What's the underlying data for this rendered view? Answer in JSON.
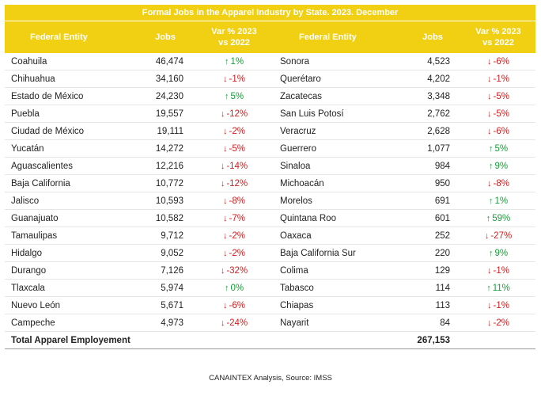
{
  "title": "Formal Jobs in the Apparel Industry by State. 2023. December",
  "headers": {
    "entity": "Federal Entity",
    "jobs": "Jobs",
    "var_line1": "Var % 2023",
    "var_line2": "vs 2022"
  },
  "colors": {
    "header_bg": "#f1cf12",
    "up": "#1a9e3a",
    "down": "#d11f1f"
  },
  "rows": [
    {
      "left": {
        "entity": "Coahuila",
        "jobs": "46,474",
        "dir": "up",
        "var": "1%"
      },
      "right": {
        "entity": "Sonora",
        "jobs": "4,523",
        "dir": "down",
        "var": "-6%"
      }
    },
    {
      "left": {
        "entity": "Chihuahua",
        "jobs": "34,160",
        "dir": "down",
        "var": "-1%"
      },
      "right": {
        "entity": "Querétaro",
        "jobs": "4,202",
        "dir": "down",
        "var": "-1%"
      }
    },
    {
      "left": {
        "entity": "Estado de México",
        "jobs": "24,230",
        "dir": "up",
        "var": "5%"
      },
      "right": {
        "entity": "Zacatecas",
        "jobs": "3,348",
        "dir": "down",
        "var": "-5%"
      }
    },
    {
      "left": {
        "entity": "Puebla",
        "jobs": "19,557",
        "dir": "down",
        "var": "-12%"
      },
      "right": {
        "entity": "San Luis Potosí",
        "jobs": "2,762",
        "dir": "down",
        "var": "-5%"
      }
    },
    {
      "left": {
        "entity": "Ciudad de México",
        "jobs": "19,111",
        "dir": "down",
        "var": "-2%"
      },
      "right": {
        "entity": "Veracruz",
        "jobs": "2,628",
        "dir": "down",
        "var": "-6%"
      }
    },
    {
      "left": {
        "entity": "Yucatán",
        "jobs": "14,272",
        "dir": "down",
        "var": "-5%"
      },
      "right": {
        "entity": "Guerrero",
        "jobs": "1,077",
        "dir": "up",
        "var": "5%"
      }
    },
    {
      "left": {
        "entity": "Aguascalientes",
        "jobs": "12,216",
        "dir": "down",
        "var": "-14%"
      },
      "right": {
        "entity": "Sinaloa",
        "jobs": "984",
        "dir": "up",
        "var": "9%"
      }
    },
    {
      "left": {
        "entity": "Baja California",
        "jobs": "10,772",
        "dir": "down",
        "var": "-12%"
      },
      "right": {
        "entity": "Michoacán",
        "jobs": "950",
        "dir": "down",
        "var": "-8%"
      }
    },
    {
      "left": {
        "entity": "Jalisco",
        "jobs": "10,593",
        "dir": "down",
        "var": "-8%"
      },
      "right": {
        "entity": "Morelos",
        "jobs": "691",
        "dir": "up",
        "var": "1%"
      }
    },
    {
      "left": {
        "entity": "Guanajuato",
        "jobs": "10,582",
        "dir": "down",
        "var": "-7%"
      },
      "right": {
        "entity": "Quintana Roo",
        "jobs": "601",
        "dir": "up",
        "var": "59%"
      }
    },
    {
      "left": {
        "entity": "Tamaulipas",
        "jobs": "9,712",
        "dir": "down",
        "var": "-2%"
      },
      "right": {
        "entity": "Oaxaca",
        "jobs": "252",
        "dir": "down",
        "var": "-27%"
      }
    },
    {
      "left": {
        "entity": "Hidalgo",
        "jobs": "9,052",
        "dir": "down",
        "var": "-2%"
      },
      "right": {
        "entity": "Baja California Sur",
        "jobs": "220",
        "dir": "up",
        "var": "9%"
      }
    },
    {
      "left": {
        "entity": "Durango",
        "jobs": "7,126",
        "dir": "down",
        "var": "-32%"
      },
      "right": {
        "entity": "Colima",
        "jobs": "129",
        "dir": "down",
        "var": "-1%"
      }
    },
    {
      "left": {
        "entity": "Tlaxcala",
        "jobs": "5,974",
        "dir": "up",
        "var": "0%"
      },
      "right": {
        "entity": "Tabasco",
        "jobs": "114",
        "dir": "up",
        "var": "11%"
      }
    },
    {
      "left": {
        "entity": "Nuevo León",
        "jobs": "5,671",
        "dir": "down",
        "var": "-6%"
      },
      "right": {
        "entity": "Chiapas",
        "jobs": "113",
        "dir": "down",
        "var": "-1%"
      }
    },
    {
      "left": {
        "entity": "Campeche",
        "jobs": "4,973",
        "dir": "down",
        "var": "-24%"
      },
      "right": {
        "entity": "Nayarit",
        "jobs": "84",
        "dir": "down",
        "var": "-2%"
      }
    }
  ],
  "total": {
    "label": "Total Apparel Employement",
    "value": "267,153"
  },
  "source": "CANAINTEX Analysis, Source: IMSS"
}
